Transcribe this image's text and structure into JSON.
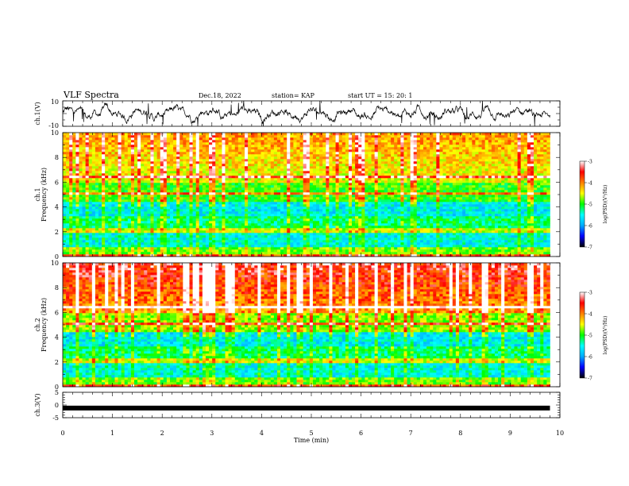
{
  "header": {
    "title": "VLF Spectra",
    "date": "Dec.18, 2022",
    "station": "station= KAP",
    "start_ut": "start  UT =   15: 20: 1"
  },
  "colorbar": {
    "label": "log(PSD)(V²/Hz)",
    "ticks": [
      -3,
      -4,
      -5,
      -6,
      -7
    ],
    "colors": [
      "#000000",
      "#0000ff",
      "#00aaff",
      "#00ffff",
      "#00ff00",
      "#ffff00",
      "#ff8000",
      "#ff0000",
      "#ffffff"
    ]
  },
  "chart_data": [
    {
      "type": "line",
      "ylabel": "ch.1(V)",
      "ylim": [
        -10,
        10
      ],
      "y_ticks": [
        10,
        -10
      ],
      "x_range": [
        0,
        9.8
      ],
      "note": "waveform amplitude mostly between -6 and 6 V"
    },
    {
      "type": "heatmap",
      "ylabel_channel": "ch.1",
      "ylabel": "Frequency (kHz)",
      "ylim": [
        0,
        10
      ],
      "y_ticks": [
        0,
        2,
        4,
        6,
        8,
        10
      ],
      "colorbar_range": [
        -7,
        -3
      ],
      "x_range": [
        0,
        9.8
      ]
    },
    {
      "type": "heatmap",
      "ylabel_channel": "ch.2",
      "ylabel": "Frequency (kHz)",
      "ylim": [
        0,
        10
      ],
      "y_ticks": [
        0,
        2,
        4,
        6,
        8,
        10
      ],
      "colorbar_range": [
        -7,
        -3
      ],
      "x_range": [
        0,
        9.8
      ]
    },
    {
      "type": "line",
      "ylabel": "ch.3(V)",
      "ylim": [
        -5,
        5
      ],
      "y_ticks": [
        5,
        0,
        -5
      ],
      "x": [
        0,
        9.8
      ],
      "y": [
        -1.2,
        -1.2
      ]
    }
  ],
  "x_axis": {
    "label": "Time (min)",
    "xlim": [
      0,
      10
    ],
    "ticks": [
      0,
      1,
      2,
      3,
      4,
      5,
      6,
      7,
      8,
      9,
      10
    ]
  }
}
